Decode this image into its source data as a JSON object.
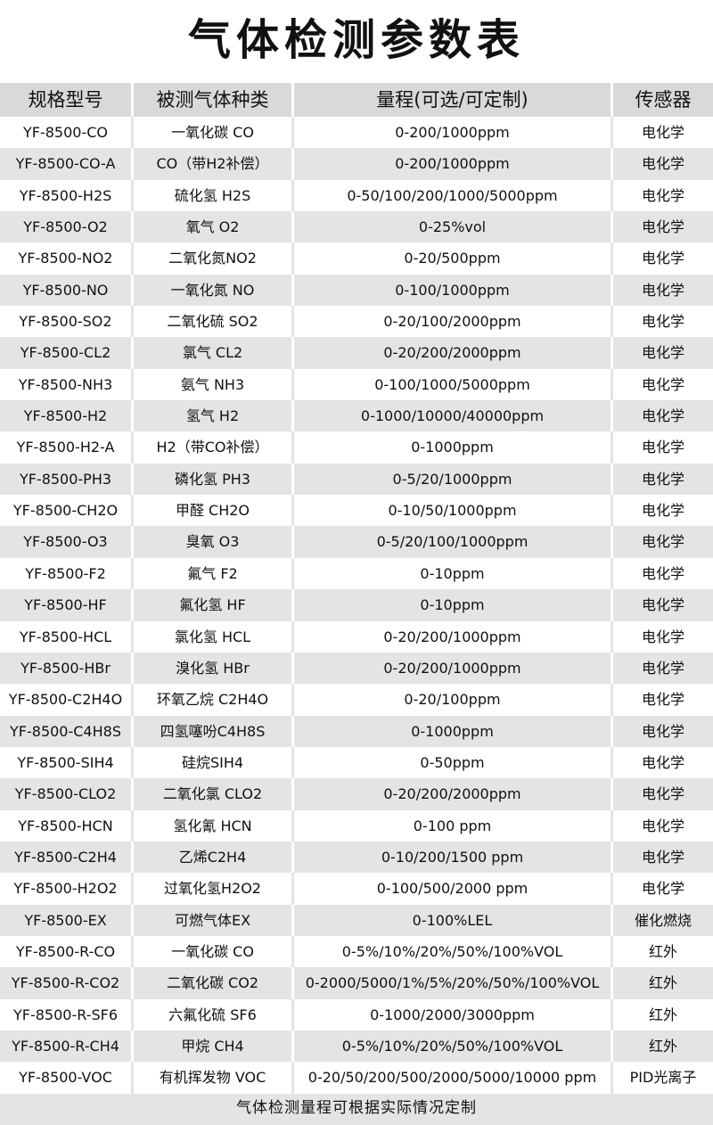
{
  "title": "气体检测参数表",
  "headers": [
    "规格型号",
    "被测气体种类",
    "量程(可选/可定制)",
    "传感器"
  ],
  "rows": [
    [
      "YF-8500-CO",
      "一氧化碳 CO",
      "0-200/1000ppm",
      "电化学"
    ],
    [
      "YF-8500-CO-A",
      "CO（带H2补偿）",
      "0-200/1000ppm",
      "电化学"
    ],
    [
      "YF-8500-H2S",
      "硫化氢 H2S",
      "0-50/100/200/1000/5000ppm",
      "电化学"
    ],
    [
      "YF-8500-O2",
      "氧气 O2",
      "0-25%vol",
      "电化学"
    ],
    [
      "YF-8500-NO2",
      "二氧化氮NO2",
      "0-20/500ppm",
      "电化学"
    ],
    [
      "YF-8500-NO",
      "一氧化氮 NO",
      "0-100/1000ppm",
      "电化学"
    ],
    [
      "YF-8500-SO2",
      "二氧化硫 SO2",
      "0-20/100/2000ppm",
      "电化学"
    ],
    [
      "YF-8500-CL2",
      "氯气 CL2",
      "0-20/200/2000ppm",
      "电化学"
    ],
    [
      "YF-8500-NH3",
      "氨气 NH3",
      "0-100/1000/5000ppm",
      "电化学"
    ],
    [
      "YF-8500-H2",
      "氢气 H2",
      "0-1000/10000/40000ppm",
      "电化学"
    ],
    [
      "YF-8500-H2-A",
      "H2（带CO补偿）",
      "0-1000ppm",
      "电化学"
    ],
    [
      "YF-8500-PH3",
      "磷化氢 PH3",
      "0-5/20/1000ppm",
      "电化学"
    ],
    [
      "YF-8500-CH2O",
      "甲醛 CH2O",
      "0-10/50/1000ppm",
      "电化学"
    ],
    [
      "YF-8500-O3",
      "臭氧 O3",
      "0-5/20/100/1000ppm",
      "电化学"
    ],
    [
      "YF-8500-F2",
      "氟气 F2",
      "0-10ppm",
      "电化学"
    ],
    [
      "YF-8500-HF",
      "氟化氢 HF",
      "0-10ppm",
      "电化学"
    ],
    [
      "YF-8500-HCL",
      "氯化氢 HCL",
      "0-20/200/1000ppm",
      "电化学"
    ],
    [
      "YF-8500-HBr",
      "溴化氢 HBr",
      "0-20/200/1000ppm",
      "电化学"
    ],
    [
      "YF-8500-C2H4O",
      "环氧乙烷 C2H4O",
      "0-20/100ppm",
      "电化学"
    ],
    [
      "YF-8500-C4H8S",
      "四氢噻吩C4H8S",
      "0-1000ppm",
      "电化学"
    ],
    [
      "YF-8500-SIH4",
      "硅烷SIH4",
      "0-50ppm",
      "电化学"
    ],
    [
      "YF-8500-CLO2",
      "二氧化氯 CLO2",
      "0-20/200/2000ppm",
      "电化学"
    ],
    [
      "YF-8500-HCN",
      "氢化氰 HCN",
      "0-100 ppm",
      "电化学"
    ],
    [
      "YF-8500-C2H4",
      "乙烯C2H4",
      "0-10/200/1500 ppm",
      "电化学"
    ],
    [
      "YF-8500-H2O2",
      "过氧化氢H2O2",
      "0-100/500/2000 ppm",
      "电化学"
    ],
    [
      "YF-8500-EX",
      "可燃气体EX",
      "0-100%LEL",
      "催化燃烧"
    ],
    [
      "YF-8500-R-CO",
      "一氧化碳 CO",
      "0-5%/10%/20%/50%/100%VOL",
      "红外"
    ],
    [
      "YF-8500-R-CO2",
      "二氧化碳 CO2",
      "0-2000/5000/1%/5%/20%/50%/100%VOL",
      "红外"
    ],
    [
      "YF-8500-R-SF6",
      "六氟化硫 SF6",
      "0-1000/2000/3000ppm",
      "红外"
    ],
    [
      "YF-8500-R-CH4",
      "甲烷 CH4",
      "0-5%/10%/20%/50%/100%VOL",
      "红外"
    ],
    [
      "YF-8500-VOC",
      "有机挥发物 VOC",
      "0-20/50/200/500/2000/5000/10000 ppm",
      "PID光离子"
    ]
  ],
  "footer": "气体检测量程可根据实际情况定制"
}
